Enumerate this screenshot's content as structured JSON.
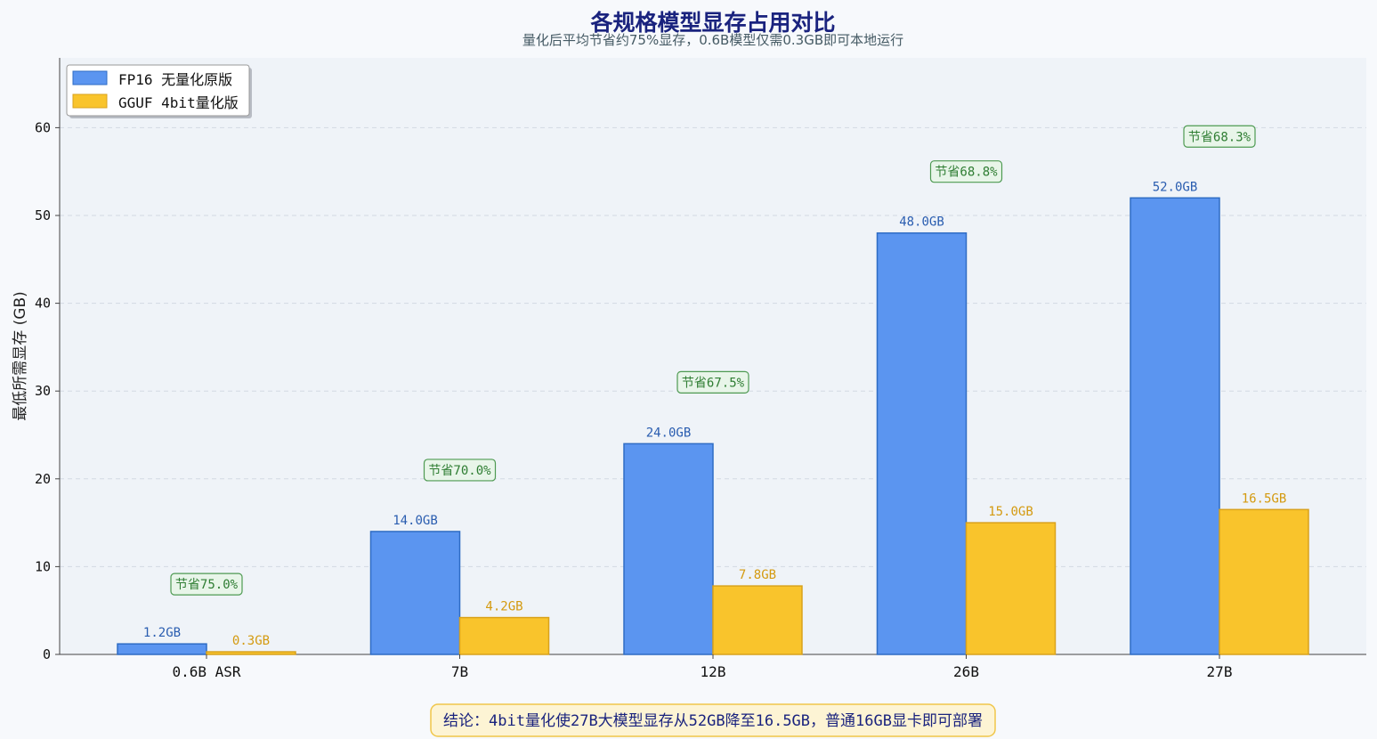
{
  "chart_data": {
    "type": "bar",
    "title": "各规格模型显存占用对比",
    "subtitle": "量化后平均节省约75%显存，0.6B模型仅需0.3GB即可本地运行",
    "ylabel": "最低所需显存 (GB)",
    "xlabel": "",
    "ylim": [
      0,
      68
    ],
    "yticks": [
      0,
      10,
      20,
      30,
      40,
      50,
      60
    ],
    "grid": true,
    "legend_position": "top-left",
    "categories": [
      "0.6B ASR",
      "7B",
      "12B",
      "26B",
      "27B"
    ],
    "series": [
      {
        "name": "FP16 无量化原版",
        "color": "#5b95f0",
        "stroke": "#2f6cc4",
        "values": [
          1.2,
          14.0,
          24.0,
          48.0,
          52.0
        ],
        "labels": [
          "1.2GB",
          "14.0GB",
          "24.0GB",
          "48.0GB",
          "52.0GB"
        ]
      },
      {
        "name": "GGUF 4bit量化版",
        "color": "#f9c42c",
        "stroke": "#d9a21c",
        "values": [
          0.3,
          4.2,
          7.8,
          15.0,
          16.5
        ],
        "labels": [
          "0.3GB",
          "4.2GB",
          "7.8GB",
          "15.0GB",
          "16.5GB"
        ]
      }
    ],
    "savings": [
      "节省75.0%",
      "节省70.0%",
      "节省67.5%",
      "节省68.8%",
      "节省68.3%"
    ],
    "savings_y": [
      8,
      21,
      31,
      55,
      59
    ],
    "conclusion": "结论：4bit量化使27B大模型显存从52GB降至16.5GB，普通16GB显卡即可部署"
  }
}
